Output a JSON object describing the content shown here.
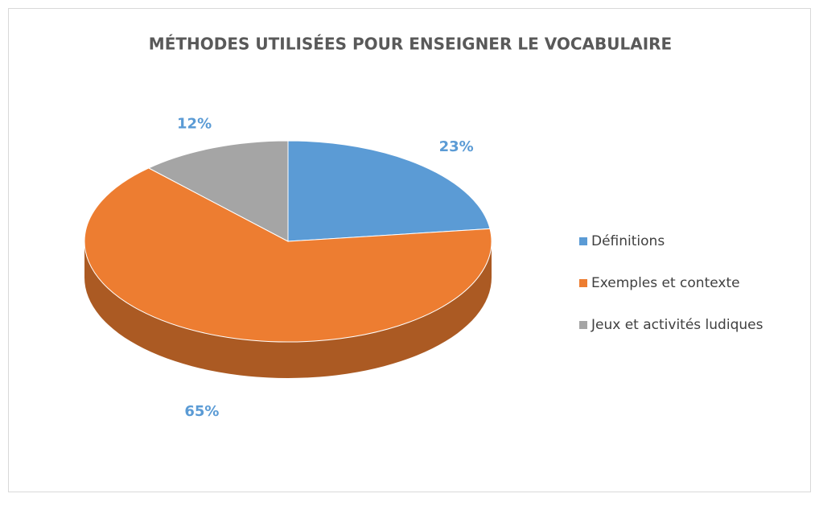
{
  "chart_data": {
    "type": "pie",
    "title": "MÉTHODES UTILISÉES POUR ENSEIGNER LE VOCABULAIRE",
    "categories": [
      "Définitions",
      "Exemples et contexte",
      "Jeux et activités ludiques"
    ],
    "values": [
      23,
      65,
      12
    ],
    "value_labels": [
      "23%",
      "65%",
      "12%"
    ],
    "colors": [
      "#5b9bd5",
      "#ed7d31",
      "#a5a5a5"
    ],
    "legend": "right"
  }
}
